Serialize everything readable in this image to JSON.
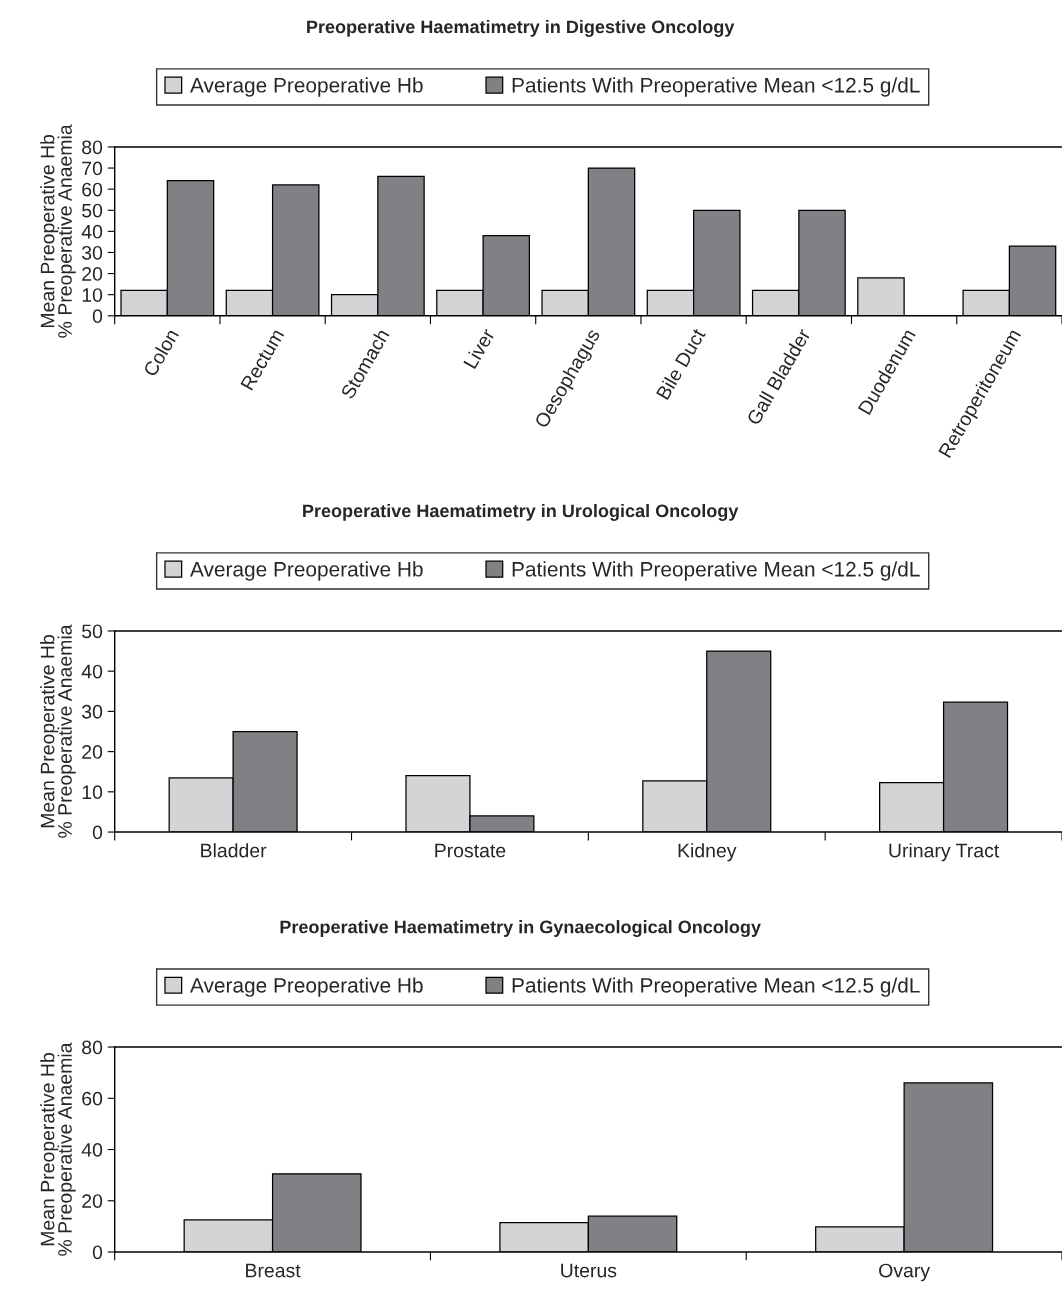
{
  "chart_data": [
    {
      "type": "bar",
      "title": "Preoperative Haematimetry in Digestive Oncology",
      "ylabel": "Mean Preoperative Hb\n% Preoperative Anaemia",
      "categories": [
        "Colon",
        "Rectum",
        "Stomach",
        "Liver",
        "Oesophagus",
        "Bile Duct",
        "Gall Bladder",
        "Duodenum",
        "Retroperitoneum"
      ],
      "series": [
        {
          "name": "Average Preoperative Hb",
          "color": "#d3d4d6",
          "values": [
            12,
            12,
            10,
            12,
            12,
            12,
            12,
            18,
            12
          ]
        },
        {
          "name": "Patients With Preoperative Mean <12.5 g/dL",
          "color": "#808184",
          "values": [
            64,
            62,
            66,
            38,
            70,
            50,
            50,
            null,
            33
          ]
        }
      ],
      "ylim": [
        0,
        80
      ],
      "yticks": [
        0,
        10,
        20,
        30,
        40,
        50,
        60,
        70,
        80
      ],
      "grid": false,
      "legend": "top"
    },
    {
      "type": "bar",
      "title": "Preoperative Haematimetry in Urological Oncology",
      "ylabel": "Mean Preoperative Hb\n% Preoperative Anaemia",
      "categories": [
        "Bladder",
        "Prostate",
        "Kidney",
        "Urinary Tract"
      ],
      "series": [
        {
          "name": "Average Preoperative Hb",
          "color": "#d3d4d6",
          "values": [
            13.5,
            14,
            12.7,
            12.3
          ]
        },
        {
          "name": "Patients With Preoperative Mean <12.5 g/dL",
          "color": "#808184",
          "values": [
            25,
            4,
            45,
            32.3
          ]
        }
      ],
      "ylim": [
        0,
        50
      ],
      "yticks": [
        0,
        10,
        20,
        30,
        40,
        50
      ],
      "grid": false,
      "legend": "top"
    },
    {
      "type": "bar",
      "title": "Preoperative Haematimetry in Gynaecological Oncology",
      "ylabel": "Mean Preoperative Hb\n% Preoperative Anaemia",
      "categories": [
        "Breast",
        "Uterus",
        "Ovary"
      ],
      "series": [
        {
          "name": "Average Preoperative Hb",
          "color": "#d3d4d6",
          "values": [
            12.5,
            11.5,
            9.8
          ]
        },
        {
          "name": "Patients With Preoperative Mean <12.5 g/dL",
          "color": "#808184",
          "values": [
            30.5,
            14,
            66
          ]
        }
      ],
      "ylim": [
        0,
        80
      ],
      "yticks": [
        0,
        20,
        40,
        60,
        80
      ],
      "grid": false,
      "legend": "top"
    }
  ]
}
